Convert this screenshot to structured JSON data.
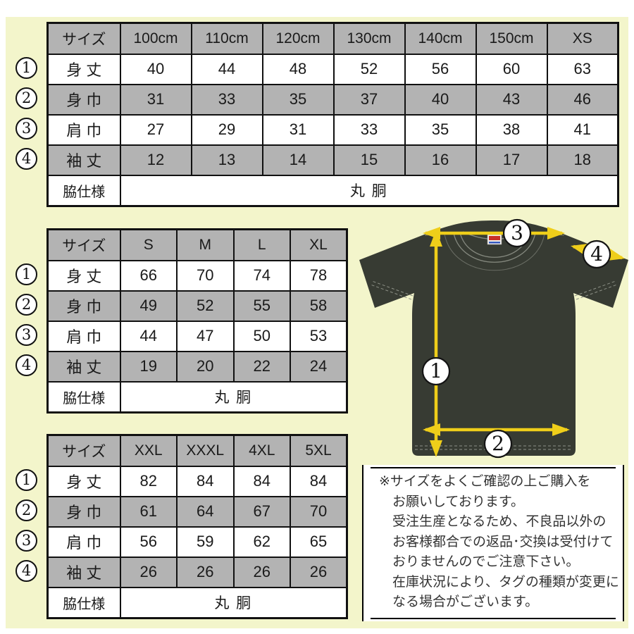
{
  "page": {
    "background_color": "#f3f5cb",
    "frame_color": "#ffffff",
    "table_shade_color": "#b3b3b3",
    "arrow_color": "#efce1a",
    "shirt_color": "#373b33"
  },
  "markers": [
    "1",
    "2",
    "3",
    "4"
  ],
  "tables": [
    {
      "name": "kids-sizes",
      "columns": [
        "サイズ",
        "100cm",
        "110cm",
        "120cm",
        "130cm",
        "140cm",
        "150cm",
        "XS"
      ],
      "rows": [
        {
          "marker": "1",
          "label": "身 丈",
          "values": [
            "40",
            "44",
            "48",
            "52",
            "56",
            "60",
            "63"
          ]
        },
        {
          "marker": "2",
          "label": "身 巾",
          "values": [
            "31",
            "33",
            "35",
            "37",
            "40",
            "43",
            "46"
          ]
        },
        {
          "marker": "3",
          "label": "肩 巾",
          "values": [
            "27",
            "29",
            "31",
            "33",
            "35",
            "38",
            "41"
          ]
        },
        {
          "marker": "4",
          "label": "袖 丈",
          "values": [
            "12",
            "13",
            "14",
            "15",
            "16",
            "17",
            "18"
          ]
        }
      ],
      "footer": {
        "label": "脇仕様",
        "value": "丸 胴"
      }
    },
    {
      "name": "adult-sizes",
      "columns": [
        "サイズ",
        "S",
        "M",
        "L",
        "XL"
      ],
      "rows": [
        {
          "marker": "1",
          "label": "身 丈",
          "values": [
            "66",
            "70",
            "74",
            "78"
          ]
        },
        {
          "marker": "2",
          "label": "身 巾",
          "values": [
            "49",
            "52",
            "55",
            "58"
          ]
        },
        {
          "marker": "3",
          "label": "肩 巾",
          "values": [
            "44",
            "47",
            "50",
            "53"
          ]
        },
        {
          "marker": "4",
          "label": "袖 丈",
          "values": [
            "19",
            "20",
            "22",
            "24"
          ]
        }
      ],
      "footer": {
        "label": "脇仕様",
        "value": "丸 胴"
      }
    },
    {
      "name": "big-sizes",
      "columns": [
        "サイズ",
        "XXL",
        "XXXL",
        "4XL",
        "5XL"
      ],
      "rows": [
        {
          "marker": "1",
          "label": "身 丈",
          "values": [
            "82",
            "84",
            "84",
            "84"
          ]
        },
        {
          "marker": "2",
          "label": "身 巾",
          "values": [
            "61",
            "64",
            "67",
            "70"
          ]
        },
        {
          "marker": "3",
          "label": "肩 巾",
          "values": [
            "56",
            "59",
            "62",
            "65"
          ]
        },
        {
          "marker": "4",
          "label": "袖 丈",
          "values": [
            "26",
            "26",
            "26",
            "26"
          ]
        }
      ],
      "footer": {
        "label": "脇仕様",
        "value": "丸 胴"
      }
    }
  ],
  "note": {
    "lines": [
      "※サイズをよくご確認の上ご購入を",
      "お願いしております。",
      "受注生産となるため、不良品以外の",
      "お客様都合での返品･交換は受付けて",
      "おりませんのでご注意下さい。",
      "在庫状況により、タグの種類が変更に",
      "なる場合がございます。"
    ]
  }
}
